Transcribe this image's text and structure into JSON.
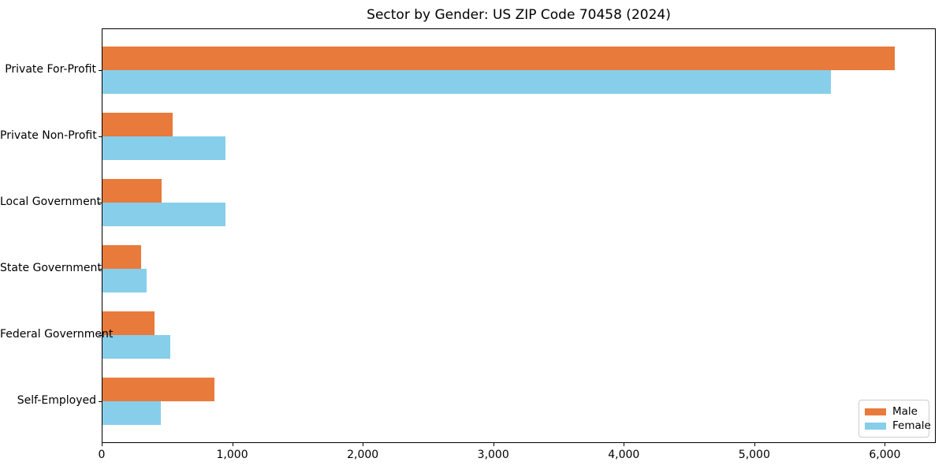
{
  "title": "Sector by Gender: US ZIP Code 70458 (2024)",
  "chart_data": {
    "type": "bar",
    "orientation": "horizontal",
    "title": "Sector by Gender: US ZIP Code 70458 (2024)",
    "categories": [
      "Private For-Profit",
      "Private Non-Profit",
      "Local Government",
      "State Government",
      "Federal Government",
      "Self-Employed"
    ],
    "series": [
      {
        "name": "Male",
        "color": "#E87A3C",
        "values": [
          6070,
          535,
          450,
          295,
          400,
          855
        ]
      },
      {
        "name": "Female",
        "color": "#87CEEB",
        "values": [
          5580,
          940,
          945,
          340,
          520,
          445
        ]
      }
    ],
    "xlabel": "",
    "ylabel": "",
    "xlim": [
      0,
      6390
    ],
    "x_tick_values": [
      0,
      1000,
      2000,
      3000,
      4000,
      5000,
      6000
    ],
    "x_tick_labels": [
      "0",
      "1,000",
      "2,000",
      "3,000",
      "4,000",
      "5,000",
      "6,000"
    ],
    "grid": false,
    "legend_position": "lower right"
  },
  "legend": {
    "entries": [
      {
        "label": "Male"
      },
      {
        "label": "Female"
      }
    ]
  }
}
